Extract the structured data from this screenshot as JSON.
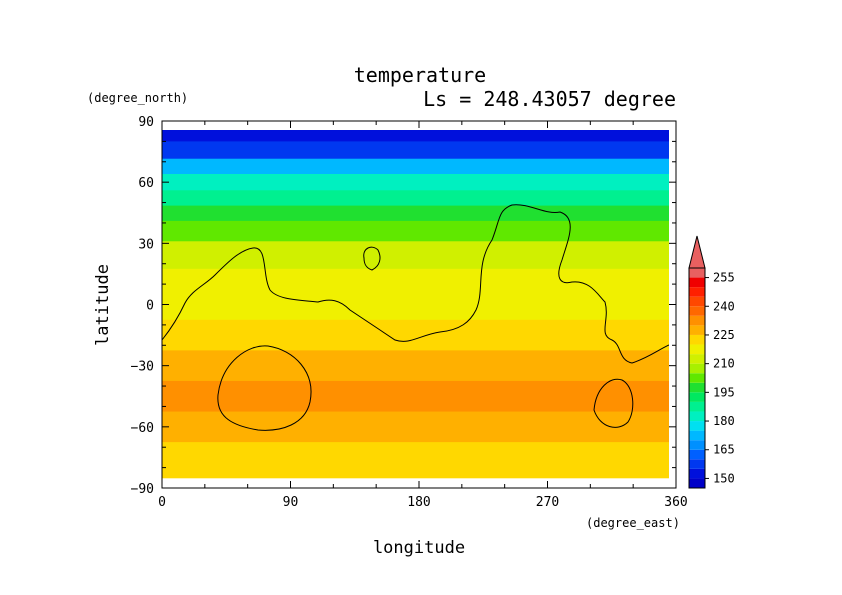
{
  "chart_data": {
    "type": "heatmap",
    "title": "temperature",
    "subtitle": "Ls = 248.43057 degree",
    "xlabel": "longitude",
    "ylabel": "latitude",
    "x_units": "(degree_east)",
    "y_units": "(degree_north)",
    "xlim": [
      0,
      360
    ],
    "ylim": [
      -90,
      90
    ],
    "x_ticks": [
      "0",
      "90",
      "180",
      "270",
      "360"
    ],
    "y_ticks": [
      "90",
      "60",
      "30",
      "0",
      "−30",
      "−60",
      "−90"
    ],
    "x_tick_values": [
      0,
      90,
      180,
      270,
      360
    ],
    "y_tick_values": [
      90,
      60,
      30,
      0,
      -30,
      -60,
      -90
    ],
    "colorbar": {
      "labels": [
        "255",
        "240",
        "225",
        "210",
        "195",
        "180",
        "165",
        "150"
      ],
      "label_values": [
        255,
        240,
        225,
        210,
        195,
        180,
        165,
        150
      ],
      "min": 145,
      "max": 260,
      "step": 5,
      "colors": [
        "#0000c8",
        "#0010dc",
        "#0038f0",
        "#0060ff",
        "#0090ff",
        "#00b8ff",
        "#00e0f0",
        "#00f0c0",
        "#00f090",
        "#00e860",
        "#20e030",
        "#60e800",
        "#a8f000",
        "#d0f000",
        "#f0f000",
        "#ffd800",
        "#ffb000",
        "#ff9000",
        "#ff6800",
        "#ff4800",
        "#ff2000",
        "#f00000",
        "#e86060"
      ]
    },
    "lat_profile": [
      {
        "lat": 85,
        "value": 150
      },
      {
        "lat": 75,
        "value": 157
      },
      {
        "lat": 68,
        "value": 170
      },
      {
        "lat": 60,
        "value": 180
      },
      {
        "lat": 52,
        "value": 188
      },
      {
        "lat": 45,
        "value": 195
      },
      {
        "lat": 37,
        "value": 203
      },
      {
        "lat": 25,
        "value": 210
      },
      {
        "lat": 10,
        "value": 215
      },
      {
        "lat": 0,
        "value": 217
      },
      {
        "lat": -15,
        "value": 222
      },
      {
        "lat": -30,
        "value": 228
      },
      {
        "lat": -45,
        "value": 230
      },
      {
        "lat": -60,
        "value": 227
      },
      {
        "lat": -75,
        "value": 224
      },
      {
        "lat": -85,
        "value": 223
      }
    ],
    "contour_level": "225"
  }
}
